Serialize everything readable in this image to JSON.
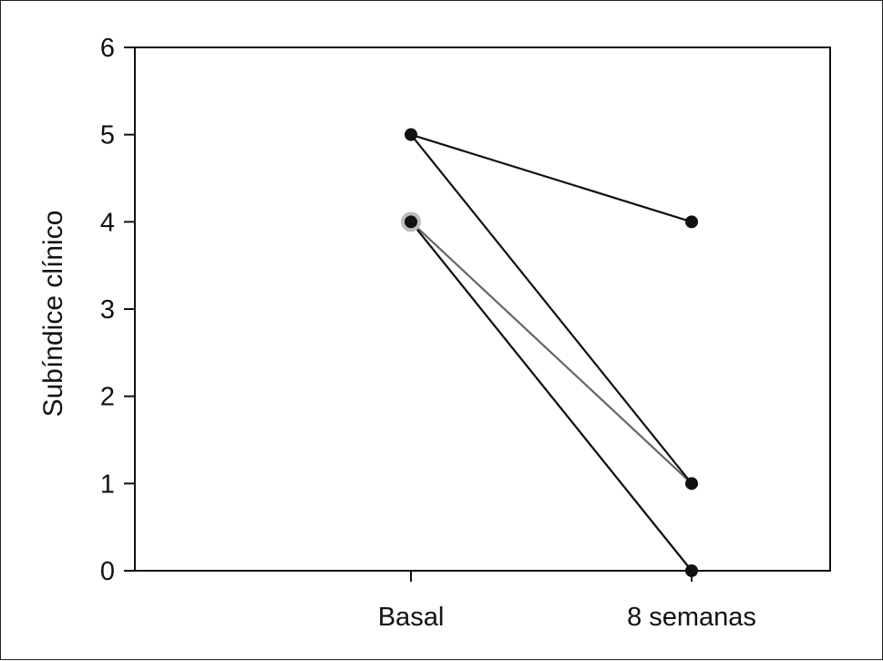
{
  "chart_data": {
    "type": "line",
    "ylabel": "Subíndice clínico",
    "xlabel": "",
    "categories": [
      "Basal",
      "8 semanas"
    ],
    "y_ticks": [
      "0",
      "1",
      "2",
      "3",
      "4",
      "5",
      "6"
    ],
    "ylim": [
      0,
      6
    ],
    "grid": false,
    "series": [
      {
        "values": [
          5,
          4
        ],
        "color": "#111111"
      },
      {
        "values": [
          5,
          1
        ],
        "color": "#111111"
      },
      {
        "values": [
          4,
          1
        ],
        "color": "#666666"
      },
      {
        "values": [
          4,
          0
        ],
        "color": "#111111"
      },
      {
        "values": [
          4,
          0
        ],
        "color": "#bbbbbb"
      }
    ]
  }
}
